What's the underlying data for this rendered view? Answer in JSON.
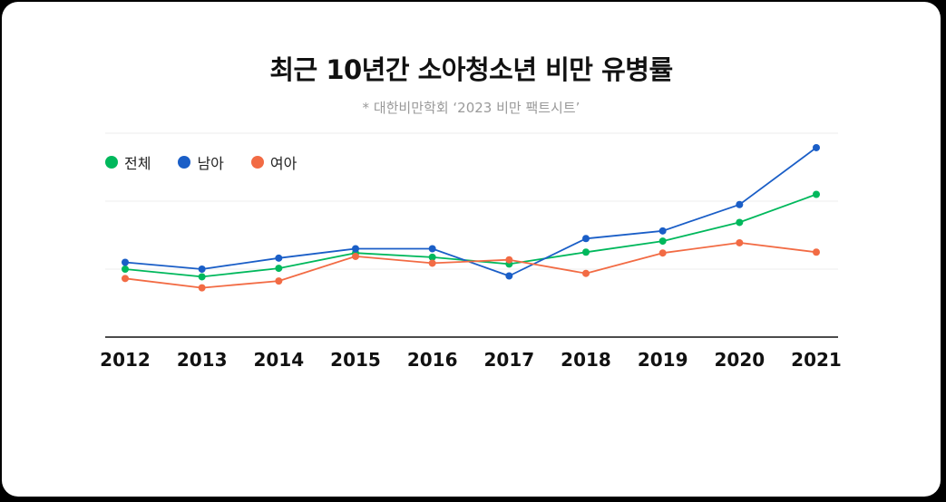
{
  "title": "최근 10년간 소아청소년 비만 유병률",
  "subtitle": "* 대한비만학회 ‘2023 비만 팩트시트’",
  "chart_data": {
    "type": "line",
    "x": [
      "2012",
      "2013",
      "2014",
      "2015",
      "2016",
      "2017",
      "2018",
      "2019",
      "2020",
      "2021"
    ],
    "series": [
      {
        "name": "전체",
        "color": "#00b85c",
        "values": [
          26.0,
          25.1,
          26.1,
          27.9,
          27.4,
          26.6,
          28.0,
          29.3,
          31.5,
          34.8
        ]
      },
      {
        "name": "남아",
        "color": "#1a5ec7",
        "values": [
          26.8,
          26.0,
          27.3,
          28.4,
          28.4,
          25.2,
          29.6,
          30.5,
          33.6,
          40.3
        ]
      },
      {
        "name": "여아",
        "color": "#f26b44",
        "values": [
          24.9,
          23.8,
          24.6,
          27.5,
          26.7,
          27.1,
          25.5,
          27.9,
          29.1,
          28.0
        ]
      }
    ],
    "ylim": [
      18,
      42
    ],
    "grid": true,
    "legend_position": "top-left"
  }
}
